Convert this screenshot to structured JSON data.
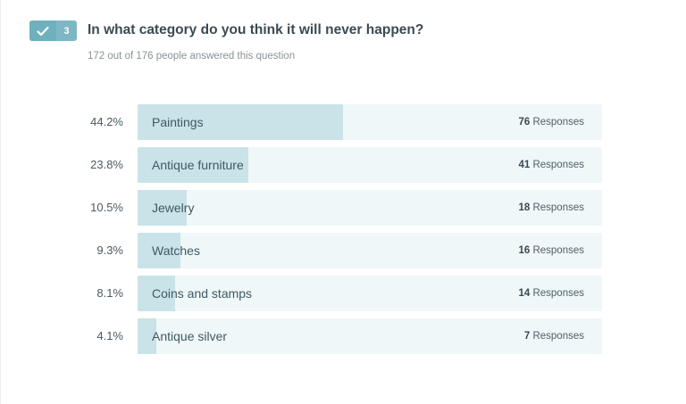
{
  "question": {
    "number": "3",
    "title": "In what category do you think it will never happen?",
    "subtitle": "172 out of 176 people answered this question"
  },
  "colors": {
    "badge": "#7cb7c3",
    "bar_track": "#eff7f8",
    "bar_fill": "#c9e3e8"
  },
  "results": [
    {
      "percent_label": "44.2%",
      "percent": 44.2,
      "label": "Paintings",
      "count": "76",
      "unit": "Responses"
    },
    {
      "percent_label": "23.8%",
      "percent": 23.8,
      "label": "Antique furniture",
      "count": "41",
      "unit": "Responses"
    },
    {
      "percent_label": "10.5%",
      "percent": 10.5,
      "label": "Jewelry",
      "count": "18",
      "unit": "Responses"
    },
    {
      "percent_label": "9.3%",
      "percent": 9.3,
      "label": "Watches",
      "count": "16",
      "unit": "Responses"
    },
    {
      "percent_label": "8.1%",
      "percent": 8.1,
      "label": "Coins and stamps",
      "count": "14",
      "unit": "Responses"
    },
    {
      "percent_label": "4.1%",
      "percent": 4.1,
      "label": "Antique silver",
      "count": "7",
      "unit": "Responses"
    }
  ]
}
